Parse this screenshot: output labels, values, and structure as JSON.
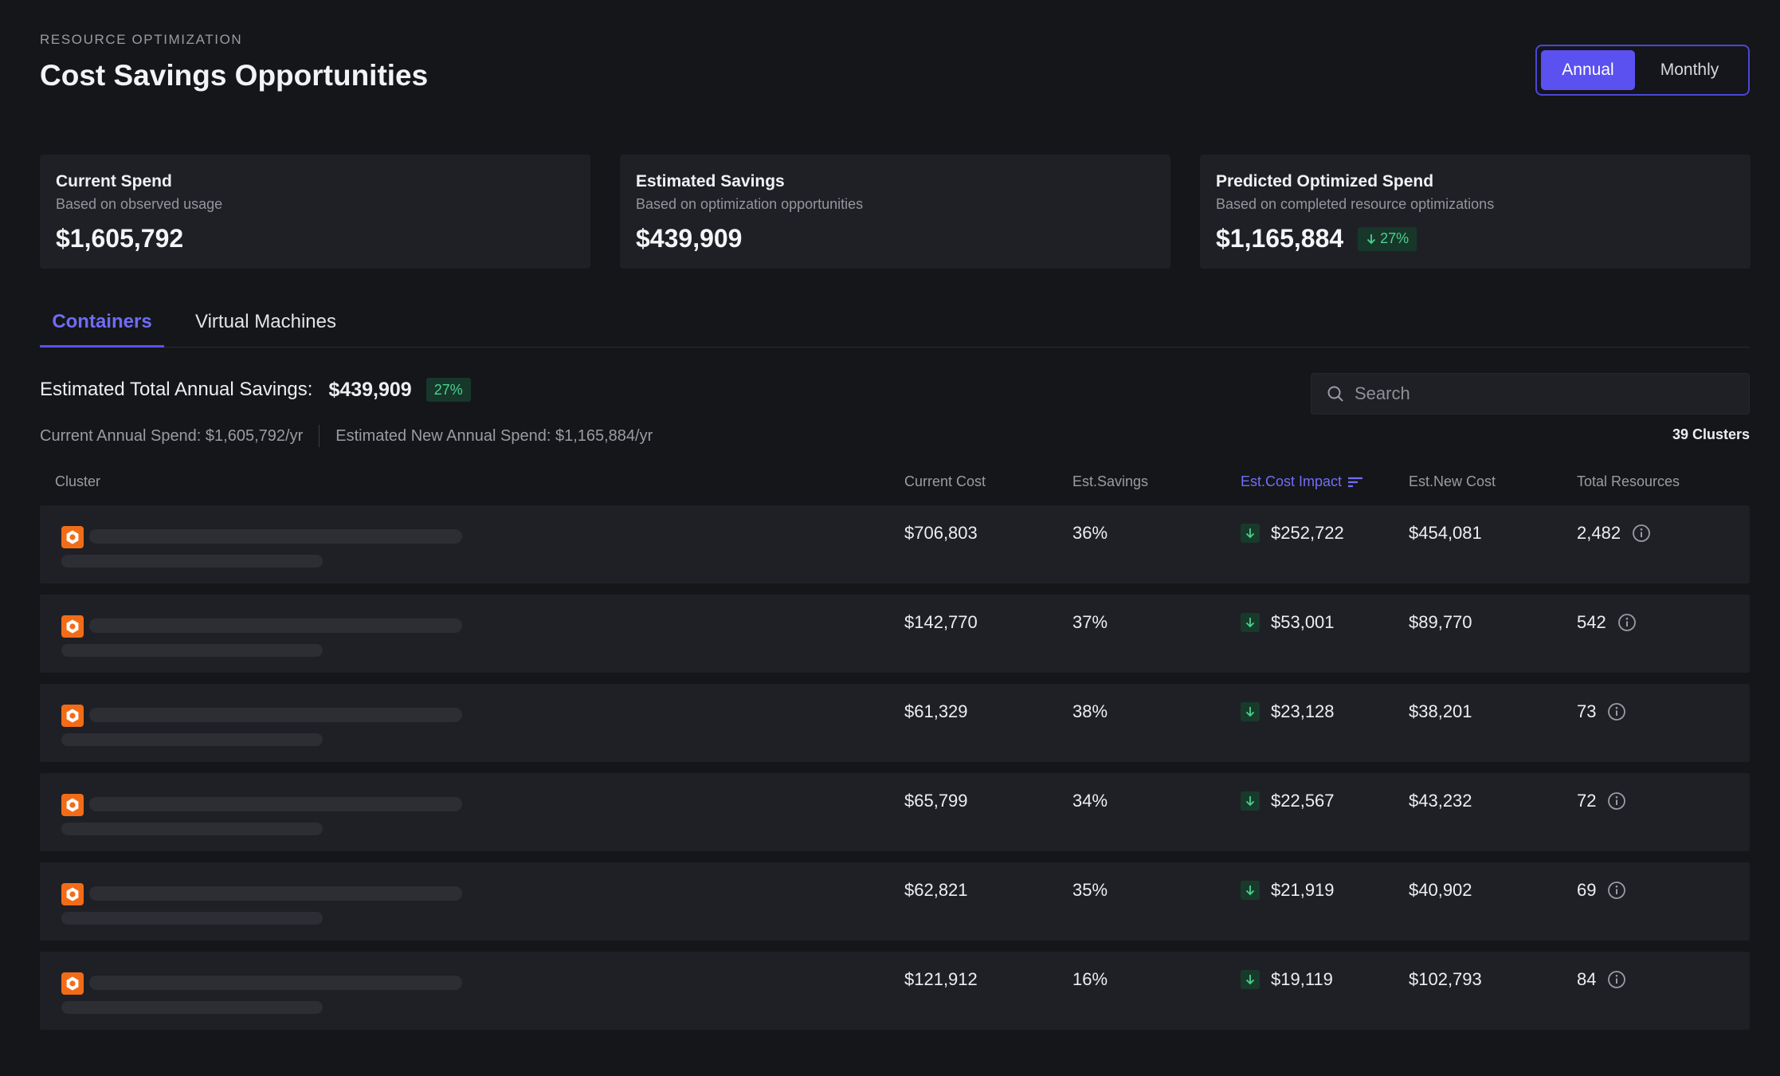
{
  "header": {
    "overline": "RESOURCE OPTIMIZATION",
    "title": "Cost Savings Opportunities",
    "toggle": {
      "active": "Annual",
      "inactive": "Monthly"
    }
  },
  "cards": [
    {
      "title": "Current Spend",
      "subtitle": "Based on observed usage",
      "value": "$1,605,792"
    },
    {
      "title": "Estimated Savings",
      "subtitle": "Based on optimization opportunities",
      "value": "$439,909"
    },
    {
      "title": "Predicted Optimized Spend",
      "subtitle": "Based on completed resource optimizations",
      "value": "$1,165,884",
      "badge": "27%"
    }
  ],
  "tabs": {
    "containers": "Containers",
    "vms": "Virtual Machines"
  },
  "summary": {
    "label": "Estimated Total Annual Savings:",
    "amount": "$439,909",
    "badge": "27%",
    "current_spend": "Current Annual Spend: $1,605,792/yr",
    "new_spend": "Estimated New Annual Spend: $1,165,884/yr"
  },
  "search": {
    "placeholder": "Search"
  },
  "cluster_count": "39 Clusters",
  "table": {
    "headers": {
      "cluster": "Cluster",
      "current_cost": "Current Cost",
      "est_savings": "Est.Savings",
      "est_cost_impact": "Est.Cost Impact",
      "est_new_cost": "Est.New Cost",
      "total_resources": "Total Resources"
    },
    "rows": [
      {
        "current_cost": "$706,803",
        "savings": "36%",
        "impact": "$252,722",
        "new_cost": "$454,081",
        "resources": "2,482"
      },
      {
        "current_cost": "$142,770",
        "savings": "37%",
        "impact": "$53,001",
        "new_cost": "$89,770",
        "resources": "542"
      },
      {
        "current_cost": "$61,329",
        "savings": "38%",
        "impact": "$23,128",
        "new_cost": "$38,201",
        "resources": "73"
      },
      {
        "current_cost": "$65,799",
        "savings": "34%",
        "impact": "$22,567",
        "new_cost": "$43,232",
        "resources": "72"
      },
      {
        "current_cost": "$62,821",
        "savings": "35%",
        "impact": "$21,919",
        "new_cost": "$40,902",
        "resources": "69"
      },
      {
        "current_cost": "$121,912",
        "savings": "16%",
        "impact": "$19,119",
        "new_cost": "$102,793",
        "resources": "84"
      }
    ]
  },
  "colors": {
    "accent": "#5b50f0",
    "positive": "#4bd08e",
    "cluster_icon": "#f26c18"
  }
}
